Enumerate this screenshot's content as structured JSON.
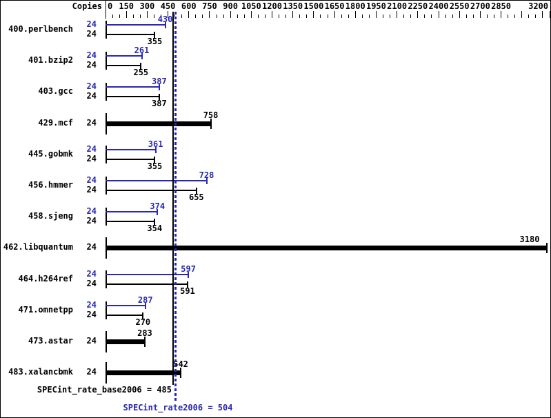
{
  "chart_data": {
    "type": "bar",
    "orientation": "horizontal",
    "copies_header": "Copies",
    "x_axis": {
      "min": 0,
      "max": 3200,
      "minor_tick_step": 50,
      "major_tick_step": 150,
      "tick_labels": [
        "0",
        "150",
        "300",
        "450",
        "600",
        "750",
        "900",
        "1050",
        "1200",
        "1350",
        "1500",
        "1650",
        "1800",
        "1950",
        "2100",
        "2250",
        "2400",
        "2550",
        "2700",
        "2850",
        "3200"
      ]
    },
    "series_colors": {
      "peak": "#2828b4",
      "base": "#000000"
    },
    "benchmarks": [
      {
        "name": "400.perlbench",
        "copies": 24,
        "peak": 430,
        "base": 355
      },
      {
        "name": "401.bzip2",
        "copies": 24,
        "peak": 261,
        "base": 255
      },
      {
        "name": "403.gcc",
        "copies": 24,
        "peak": 387,
        "base": 387
      },
      {
        "name": "429.mcf",
        "copies": 24,
        "merged": 758
      },
      {
        "name": "445.gobmk",
        "copies": 24,
        "peak": 361,
        "base": 355
      },
      {
        "name": "456.hmmer",
        "copies": 24,
        "peak": 728,
        "base": 655
      },
      {
        "name": "458.sjeng",
        "copies": 24,
        "peak": 374,
        "base": 354
      },
      {
        "name": "462.libquantum",
        "copies": 24,
        "merged": 3180
      },
      {
        "name": "464.h264ref",
        "copies": 24,
        "peak": 597,
        "base": 591
      },
      {
        "name": "471.omnetpp",
        "copies": 24,
        "peak": 287,
        "base": 270
      },
      {
        "name": "473.astar",
        "copies": 24,
        "merged": 283
      },
      {
        "name": "483.xalancbmk",
        "copies": 24,
        "merged": 542
      }
    ],
    "summary": {
      "base": {
        "label": "SPECint_rate_base2006 = 485",
        "value": 485,
        "color": "#000000"
      },
      "peak": {
        "label": "SPECint_rate2006 = 504",
        "value": 504,
        "color": "#2828b4"
      }
    }
  }
}
